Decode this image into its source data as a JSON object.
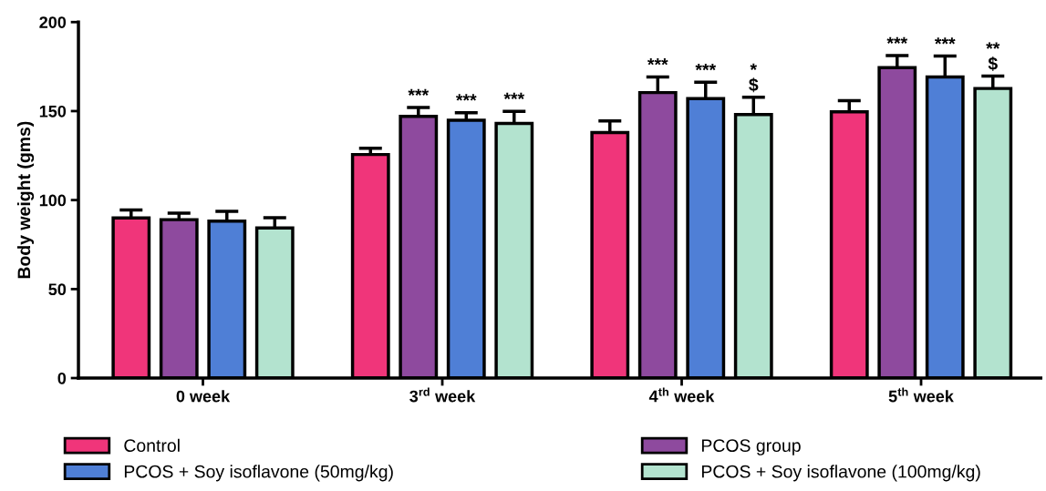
{
  "chart_data": {
    "type": "bar",
    "ylabel": "Body weight (gms)",
    "categories": [
      "0 week",
      "3$^{rd}$ week",
      "4$^{th}$ week",
      "5$^{th}$ week"
    ],
    "series": [
      {
        "name": "Control",
        "color": "#f0357a",
        "values": [
          90,
          125.6,
          138,
          149.6
        ],
        "errors": [
          4.4,
          3.5,
          6.5,
          6.3
        ]
      },
      {
        "name": "PCOS group",
        "color": "#8e4a9e",
        "values": [
          89,
          147,
          160.4,
          174.4
        ],
        "errors": [
          3.7,
          5,
          8.8,
          6.8
        ]
      },
      {
        "name": "PCOS + Soy isoflavone (50mg/kg)",
        "color": "#4f7fd6",
        "values": [
          88.2,
          144.8,
          157,
          169.2
        ],
        "errors": [
          5.5,
          4.3,
          9.2,
          11.7
        ]
      },
      {
        "name": "PCOS + Soy isoflavone (100mg/kg)",
        "color": "#b3e3cf",
        "values": [
          84.3,
          143.1,
          148,
          162.7
        ],
        "errors": [
          5.8,
          6.8,
          9.8,
          7
        ]
      }
    ],
    "ylim": [
      0,
      200
    ],
    "yticks": [
      0,
      50,
      100,
      150,
      200
    ],
    "legend": "bottom",
    "annotations": [
      "***",
      "***",
      "***",
      "***",
      "***",
      "*\n$",
      "***",
      "***",
      "**\n$"
    ]
  }
}
